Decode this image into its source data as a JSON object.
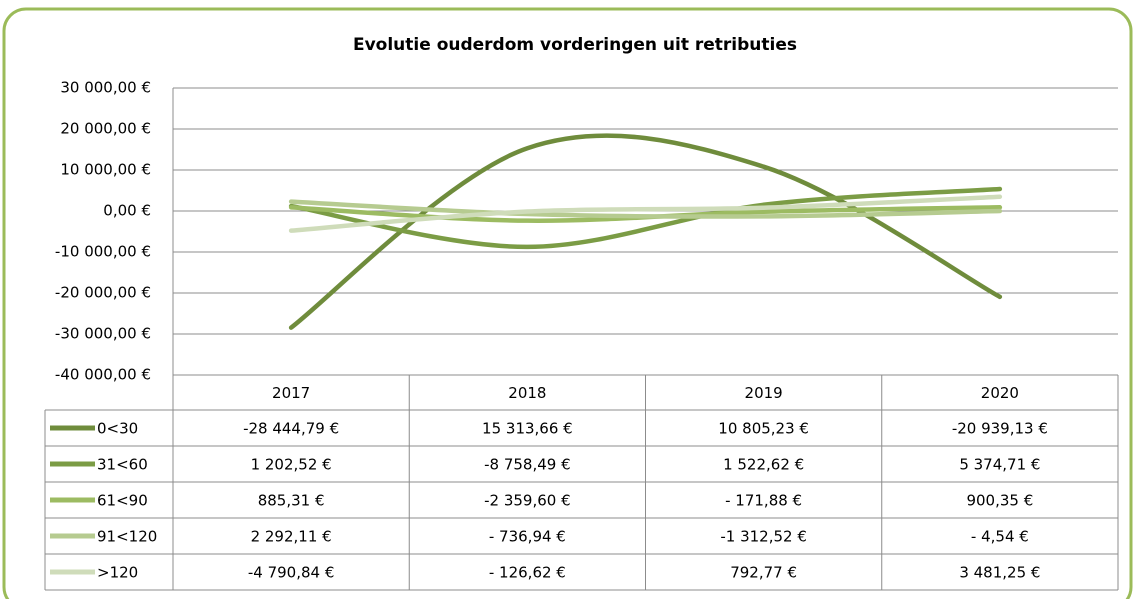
{
  "chart_data": {
    "type": "line",
    "title": "Evolutie ouderdom vorderingen uit retributies",
    "categories": [
      "2017",
      "2018",
      "2019",
      "2020"
    ],
    "series": [
      {
        "name": "0<30",
        "color": "#6f8c3c",
        "values": [
          -28444.79,
          15313.66,
          10805.23,
          -20939.13
        ],
        "value_labels": [
          "-28 444,79 €",
          "15 313,66 €",
          "10 805,23 €",
          "-20 939,13 €"
        ]
      },
      {
        "name": "31<60",
        "color": "#7b9c45",
        "values": [
          1202.52,
          -8758.49,
          1522.62,
          5374.71
        ],
        "value_labels": [
          "1 202,52 €",
          "-8 758,49 €",
          "1 522,62 €",
          "5 374,71 €"
        ]
      },
      {
        "name": "61<90",
        "color": "#9cbb62",
        "values": [
          885.31,
          -2359.6,
          -171.88,
          900.35
        ],
        "value_labels": [
          "885,31 €",
          "-2 359,60 €",
          "- 171,88 €",
          "900,35 €"
        ]
      },
      {
        "name": "91<120",
        "color": "#b6cb90",
        "values": [
          2292.11,
          -736.94,
          -1312.52,
          -4.54
        ],
        "value_labels": [
          "2 292,11 €",
          "- 736,94 €",
          "-1 312,52 €",
          "- 4,54 €"
        ]
      },
      {
        "name": ">120",
        "color": "#cfdcba",
        "values": [
          -4790.84,
          -126.62,
          792.77,
          3481.25
        ],
        "value_labels": [
          "-4 790,84 €",
          "- 126,62 €",
          "792,77 €",
          "3 481,25 €"
        ]
      }
    ],
    "ylim": [
      -40000,
      30000
    ],
    "yticks": [
      {
        "value": -40000,
        "label": "-40 000,00 €"
      },
      {
        "value": -30000,
        "label": "-30 000,00 €"
      },
      {
        "value": -20000,
        "label": "-20 000,00 €"
      },
      {
        "value": -10000,
        "label": "-10 000,00 €"
      },
      {
        "value": 0,
        "label": "0,00 €"
      },
      {
        "value": 10000,
        "label": "10 000,00 €"
      },
      {
        "value": 20000,
        "label": "20 000,00 €"
      },
      {
        "value": 30000,
        "label": "30 000,00 €"
      }
    ],
    "grid": true,
    "smooth": true,
    "data_table": true
  }
}
